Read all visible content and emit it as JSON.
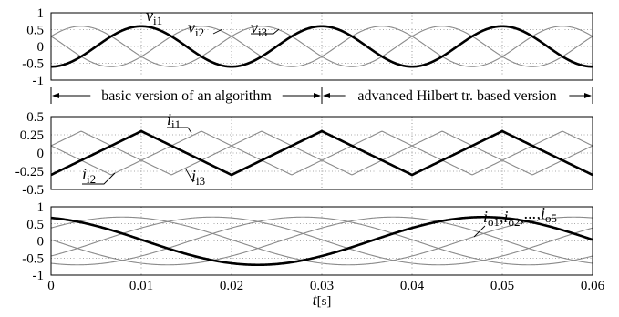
{
  "chart_data": [
    {
      "type": "line",
      "ylim": [
        -1,
        1
      ],
      "xlim": [
        0,
        0.06
      ],
      "y_ticks": [
        "1",
        "0.5",
        "0",
        "-0.5",
        "-1"
      ],
      "y_tick_values": [
        1,
        0.5,
        0,
        -0.5,
        -1
      ],
      "series": [
        {
          "name": "v_i1",
          "label_main": "v",
          "label_sub": "i1",
          "amplitude": 0.6,
          "frequency_hz": 50,
          "phase_deg": -90,
          "emphasis": "bold"
        },
        {
          "name": "v_i2",
          "label_main": "v",
          "label_sub": "i2",
          "amplitude": 0.6,
          "frequency_hz": 50,
          "phase_deg": -210,
          "emphasis": "thin"
        },
        {
          "name": "v_i3",
          "label_main": "v",
          "label_sub": "i3",
          "amplitude": 0.6,
          "frequency_hz": 50,
          "phase_deg": 30,
          "emphasis": "thin"
        }
      ],
      "annotations": [
        {
          "text": "basic version of an algorithm",
          "x_from": 0,
          "x_to": 0.03
        },
        {
          "text": "advanced Hilbert tr. based version",
          "x_from": 0.03,
          "x_to": 0.06
        }
      ]
    },
    {
      "type": "line",
      "ylim": [
        -0.5,
        0.5
      ],
      "xlim": [
        0,
        0.06
      ],
      "y_ticks": [
        "0.5",
        "0.25",
        "0",
        "-0.25",
        "-0.5"
      ],
      "y_tick_values": [
        0.5,
        0.25,
        0,
        -0.25,
        -0.5
      ],
      "series": [
        {
          "name": "i_i1",
          "label_main": "i",
          "label_sub": "i1",
          "amplitude": 0.3,
          "frequency_hz": 50,
          "phase_deg": -90,
          "emphasis": "bold",
          "shape": "triangle"
        },
        {
          "name": "i_i2",
          "label_main": "i",
          "label_sub": "i2",
          "amplitude": 0.3,
          "frequency_hz": 50,
          "phase_deg": -210,
          "emphasis": "thin",
          "shape": "triangle"
        },
        {
          "name": "i_i3",
          "label_main": "i",
          "label_sub": "i3",
          "amplitude": 0.3,
          "frequency_hz": 50,
          "phase_deg": 30,
          "emphasis": "thin",
          "shape": "triangle"
        }
      ]
    },
    {
      "type": "line",
      "ylim": [
        -1,
        1
      ],
      "xlim": [
        0,
        0.06
      ],
      "y_ticks": [
        "1",
        "0.5",
        "0",
        "-0.5",
        "-1"
      ],
      "y_tick_values": [
        1,
        0.5,
        0,
        -0.5,
        -1
      ],
      "x_ticks": [
        "0",
        "0.01",
        "0.02",
        "0.03",
        "0.04",
        "0.05",
        "0.06"
      ],
      "x_tick_values": [
        0,
        0.01,
        0.02,
        0.03,
        0.04,
        0.05,
        0.06
      ],
      "xlabel_main": "t",
      "xlabel_unit": "[s]",
      "series": [
        {
          "name": "i_o1",
          "amplitude": 0.7,
          "frequency_hz": 20,
          "phase_deg": 105,
          "emphasis": "bold"
        },
        {
          "name": "i_o2",
          "amplitude": 0.7,
          "frequency_hz": 20,
          "phase_deg": 33,
          "emphasis": "thin"
        },
        {
          "name": "i_o3",
          "amplitude": 0.7,
          "frequency_hz": 20,
          "phase_deg": -39,
          "emphasis": "thin"
        },
        {
          "name": "i_o4",
          "amplitude": 0.7,
          "frequency_hz": 20,
          "phase_deg": -111,
          "emphasis": "thin"
        },
        {
          "name": "i_o5",
          "amplitude": 0.7,
          "frequency_hz": 20,
          "phase_deg": -183,
          "emphasis": "thin"
        }
      ],
      "legend_label": {
        "parts": [
          [
            "i",
            "o1"
          ],
          [
            "i",
            "o2"
          ],
          [
            "...",
            ""
          ],
          [
            "i",
            "o5"
          ]
        ]
      }
    }
  ]
}
